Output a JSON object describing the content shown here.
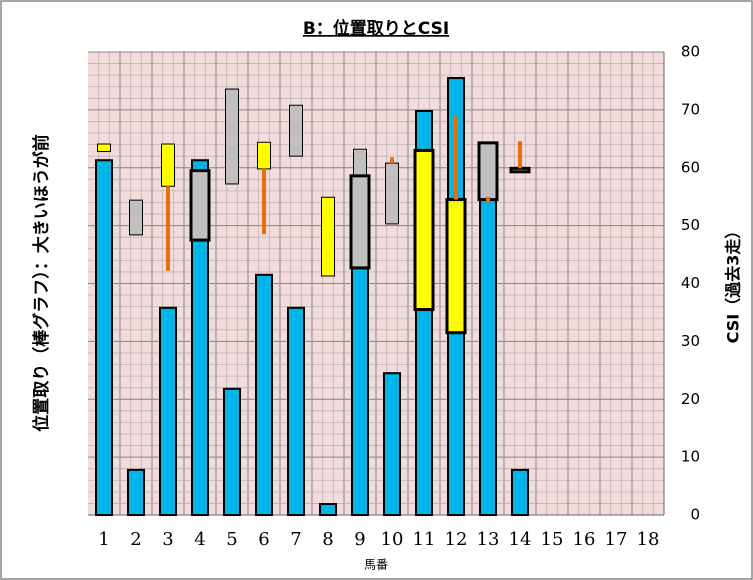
{
  "chart_data": {
    "type": "bar",
    "title": "B：位置取りとCSI",
    "y_label": "位置取り（棒グラフ）：大きいほうが前",
    "y2_label": "CSI（過去3走）",
    "x_label": "馬番",
    "categories": [
      "1",
      "2",
      "3",
      "4",
      "5",
      "6",
      "7",
      "8",
      "9",
      "10",
      "11",
      "12",
      "13",
      "14",
      "15",
      "16",
      "17",
      "18"
    ],
    "values": [
      61.3,
      7.8,
      35.8,
      61.3,
      21.8,
      41.5,
      35.8,
      1.9,
      42.7,
      24.5,
      69.8,
      75.5,
      64.3,
      7.8,
      0,
      0,
      0,
      0
    ],
    "color": "#00b4e8",
    "ylim": [
      0,
      80
    ],
    "yticks": [
      0,
      10,
      20,
      30,
      40,
      50,
      60,
      70,
      80
    ],
    "grid": true,
    "boxes": [
      {
        "category": "1",
        "low": 62.8,
        "high": 64.1,
        "color": "#ffff00",
        "outline": false
      },
      {
        "category": "2",
        "low": 48.4,
        "high": 54.4,
        "color": "#c0c0c0",
        "outline": false
      },
      {
        "category": "3",
        "low": 56.8,
        "high": 64.1,
        "color": "#ffff00",
        "outline": false
      },
      {
        "category": "4",
        "low": 47.5,
        "high": 59.5,
        "color": "#c0c0c0",
        "outline": true
      },
      {
        "category": "5",
        "low": 57.2,
        "high": 73.6,
        "color": "#c0c0c0",
        "outline": false
      },
      {
        "category": "6",
        "low": 59.8,
        "high": 64.4,
        "color": "#ffff00",
        "outline": false
      },
      {
        "category": "7",
        "low": 62,
        "high": 70.8,
        "color": "#c0c0c0",
        "outline": false
      },
      {
        "category": "8",
        "low": 41.3,
        "high": 54.9,
        "color": "#ffff00",
        "outline": false
      },
      {
        "category": "9",
        "low": 42.7,
        "high": 63.2,
        "color": "#c0c0c0",
        "outline": false
      },
      {
        "category": "9",
        "low": 42.7,
        "high": 58.6,
        "color": "#c0c0c0",
        "outline": true
      },
      {
        "category": "10",
        "low": 50.3,
        "high": 60.8,
        "color": "#c0c0c0",
        "outline": false
      },
      {
        "category": "11",
        "low": 35.5,
        "high": 63,
        "color": "#ffff00",
        "outline": true
      },
      {
        "category": "12",
        "low": 31.5,
        "high": 54.5,
        "color": "#ffff00",
        "outline": true
      },
      {
        "category": "13",
        "low": 54.5,
        "high": 64.3,
        "color": "#c0c0c0",
        "outline": true
      },
      {
        "category": "14",
        "low": 59.3,
        "high": 59.9,
        "color": "#c0c0c0",
        "outline": true
      }
    ],
    "spikes": [
      {
        "category": "3",
        "low": 42.2,
        "high": 56.8
      },
      {
        "category": "6",
        "low": 48.5,
        "high": 59.8
      },
      {
        "category": "10",
        "low": 60.8,
        "high": 61.8
      },
      {
        "category": "12",
        "low": 54.5,
        "high": 68.9
      },
      {
        "category": "13",
        "low": 54,
        "high": 55
      },
      {
        "category": "14",
        "low": 59.9,
        "high": 64.6
      }
    ],
    "spike_color": "#e8700a"
  }
}
